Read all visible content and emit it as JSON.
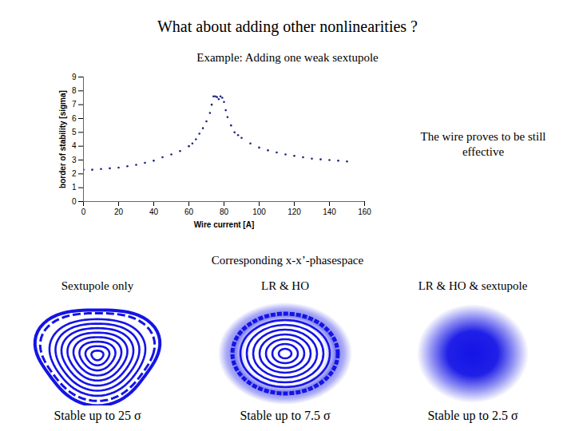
{
  "chart_data": {
    "type": "scatter",
    "x_label": "Wire current [A]",
    "y_label": "border of stability [sigma]",
    "x": [
      0,
      5,
      10,
      15,
      20,
      25,
      30,
      35,
      40,
      45,
      50,
      55,
      60,
      62,
      64,
      66,
      68,
      70,
      72,
      73,
      74,
      75,
      76,
      77,
      78,
      79,
      80,
      81,
      82,
      84,
      86,
      88,
      90,
      95,
      100,
      105,
      110,
      115,
      120,
      125,
      130,
      135,
      140,
      145,
      150
    ],
    "values": [
      2.3,
      2.3,
      2.35,
      2.4,
      2.45,
      2.55,
      2.65,
      2.8,
      2.95,
      3.2,
      3.4,
      3.65,
      4.0,
      4.2,
      4.5,
      4.9,
      5.3,
      5.8,
      6.4,
      7.0,
      7.6,
      7.6,
      7.55,
      7.4,
      7.6,
      7.5,
      7.2,
      6.6,
      6.1,
      5.5,
      5.0,
      4.8,
      4.6,
      4.2,
      3.9,
      3.7,
      3.55,
      3.4,
      3.3,
      3.2,
      3.1,
      3.05,
      3.0,
      2.95,
      2.9
    ],
    "color": "#1a237e",
    "marker": "circle",
    "xlim": [
      0,
      160
    ],
    "xticks": [
      0,
      20,
      40,
      60,
      80,
      100,
      120,
      140,
      160
    ],
    "ylim": [
      0,
      9
    ],
    "yticks": [
      0,
      1,
      2,
      3,
      4,
      5,
      6,
      7,
      8,
      9
    ],
    "grid": false
  },
  "slide": {
    "title": "What about adding other nonlinearities ?",
    "subtitle": "Example: Adding one weak sextupole",
    "note": "The wire proves to be still effective",
    "section": "Corresponding x-x’-phasespace",
    "panels": [
      {
        "title": "Sextupole only",
        "caption": "Stable up to 25 σ"
      },
      {
        "title": "LR & HO",
        "caption": "Stable up to 7.5 σ"
      },
      {
        "title": "LR & HO & sextupole",
        "caption": "Stable up to 2.5 σ"
      }
    ]
  }
}
